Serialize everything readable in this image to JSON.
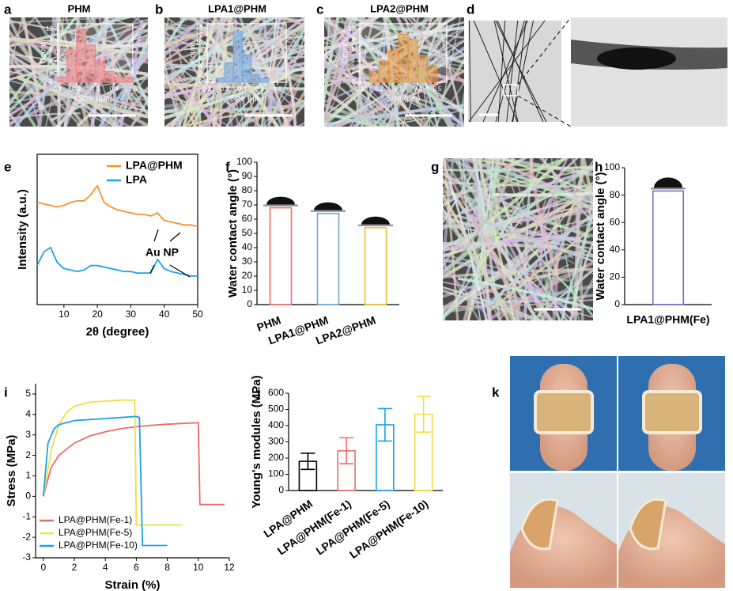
{
  "chart_data": [
    {
      "type": "histogram",
      "panel": "a",
      "title": "PHM",
      "bins": [
        0.1,
        0.15,
        0.2,
        0.25,
        0.3,
        0.35,
        0.4,
        0.45,
        0.5
      ],
      "counts": [
        1,
        6,
        10,
        7,
        4,
        2,
        1,
        1
      ],
      "color": "#f08080",
      "xlim": [
        0.1,
        0.5
      ],
      "xticks": [
        0.1,
        0.2,
        0.3,
        0.4,
        0.5
      ],
      "ylim": [
        0,
        11
      ],
      "yticks": [
        0,
        2,
        4,
        6,
        8,
        10
      ],
      "xlabel": "Size (μm)",
      "ylabel": "Count"
    },
    {
      "type": "histogram",
      "panel": "b",
      "title": "LPA1@PHM",
      "bins": [
        0.25,
        0.3,
        0.35,
        0.4,
        0.45,
        0.5,
        0.55
      ],
      "counts": [
        1,
        5,
        13,
        7,
        2,
        1
      ],
      "color": "#6fa8dc",
      "xlim": [
        0.2,
        0.65
      ],
      "xticks": [
        0.2,
        0.3,
        0.4,
        0.5,
        0.6
      ],
      "ylim": [
        0,
        15
      ],
      "yticks": [
        0,
        2,
        4,
        6,
        8,
        10,
        12,
        14
      ],
      "xlabel": "Size (μm)",
      "ylabel": "Count"
    },
    {
      "type": "histogram",
      "panel": "c",
      "title": "LPA2@PHM",
      "bins": [
        0.15,
        0.2,
        0.25,
        0.3,
        0.35,
        0.4,
        0.45,
        0.5
      ],
      "counts": [
        2,
        4,
        6,
        9,
        8,
        5,
        3
      ],
      "color": "#e69138",
      "xlim": [
        0.1,
        0.55
      ],
      "xticks": [
        0.1,
        0.2,
        0.3,
        0.4,
        0.5
      ],
      "ylim": [
        0,
        11
      ],
      "yticks": [
        0,
        2,
        4,
        6,
        8,
        10
      ],
      "xlabel": "Size (μm)",
      "ylabel": "Count"
    },
    {
      "type": "line",
      "panel": "e",
      "x": [
        2,
        4,
        6,
        8,
        10,
        12,
        14,
        16,
        18,
        20,
        22,
        24,
        26,
        28,
        30,
        32,
        34,
        36,
        38,
        40,
        42,
        44,
        46,
        48,
        50
      ],
      "series": [
        {
          "name": "LPA@PHM",
          "color": "#f7902e",
          "values": [
            6.8,
            6.7,
            6.6,
            6.5,
            6.6,
            6.8,
            6.9,
            6.9,
            7.3,
            7.9,
            6.8,
            6.5,
            6.3,
            6.2,
            6.1,
            6.0,
            6.0,
            5.9,
            6.1,
            5.6,
            5.5,
            5.4,
            5.3,
            5.3,
            5.2
          ]
        },
        {
          "name": "LPA",
          "color": "#1aa3e8",
          "values": [
            2.6,
            3.5,
            3.8,
            2.8,
            2.4,
            2.3,
            2.2,
            2.3,
            2.6,
            2.6,
            2.5,
            2.4,
            2.3,
            2.2,
            2.2,
            2.1,
            2.1,
            2.1,
            3.0,
            2.4,
            2.2,
            2.1,
            2.0,
            1.9,
            1.9
          ]
        }
      ],
      "xlim": [
        2,
        50
      ],
      "xticks": [
        10,
        20,
        30,
        40,
        50
      ],
      "ylim": [
        0,
        10
      ],
      "xlabel": "2θ (degree)",
      "ylabel": "Intensity (a.u.)",
      "annotation": "Au NP"
    },
    {
      "type": "bar",
      "panel": "f",
      "categories": [
        "PHM",
        "LPA1@PHM",
        "LPA2@PHM"
      ],
      "values": [
        68,
        64,
        54
      ],
      "colors": [
        "#f06a6a",
        "#6fa8dc",
        "#f1c232"
      ],
      "ylim": [
        0,
        100
      ],
      "yticks": [
        0,
        10,
        20,
        30,
        40,
        50,
        60,
        70,
        80,
        90,
        100
      ],
      "ylabel": "Water contact angle (°)"
    },
    {
      "type": "bar",
      "panel": "h",
      "categories": [
        "LPA1@PHM(Fe)"
      ],
      "values": [
        83
      ],
      "colors": [
        "#7b68c8"
      ],
      "ylim": [
        0,
        100
      ],
      "yticks": [
        0,
        20,
        40,
        60,
        80,
        100
      ],
      "ylabel": "Water contact angle (°)"
    },
    {
      "type": "line",
      "panel": "i",
      "series": [
        {
          "name": "LPA@PHM(Fe-1)",
          "color": "#f06a6a",
          "x": [
            0,
            0.5,
            1,
            2,
            3,
            4,
            5,
            6,
            7,
            8,
            9,
            10,
            10.1,
            11.7
          ],
          "values": [
            0,
            1.4,
            2.0,
            2.6,
            2.95,
            3.15,
            3.3,
            3.4,
            3.47,
            3.52,
            3.56,
            3.6,
            -0.4,
            -0.4
          ]
        },
        {
          "name": "LPA@PHM(Fe-5)",
          "color": "#f0e040",
          "x": [
            0,
            0.5,
            1,
            1.5,
            2,
            3,
            4,
            5,
            5.9,
            6.0,
            9
          ],
          "values": [
            0,
            2.2,
            3.5,
            4.1,
            4.4,
            4.6,
            4.65,
            4.7,
            4.7,
            -1.4,
            -1.4
          ]
        },
        {
          "name": "LPA@PHM(Fe-10)",
          "color": "#1aa3e8",
          "x": [
            0,
            0.3,
            0.7,
            1,
            2,
            3,
            4,
            5,
            6,
            6.2,
            6.4,
            8
          ],
          "values": [
            0,
            2.6,
            3.3,
            3.5,
            3.7,
            3.75,
            3.8,
            3.85,
            3.9,
            3.85,
            -2.4,
            -2.4
          ]
        }
      ],
      "xlim": [
        -0.5,
        12
      ],
      "xticks": [
        0,
        2,
        4,
        6,
        8,
        10,
        12
      ],
      "ylim": [
        -3,
        5.5
      ],
      "yticks": [
        -3,
        -2,
        -1,
        0,
        1,
        2,
        3,
        4,
        5
      ],
      "xlabel": "Strain (%)",
      "ylabel": "Stress (MPa)"
    },
    {
      "type": "bar",
      "panel": "j",
      "categories": [
        "LPA@PHM",
        "LPA@PHM(Fe-1)",
        "LPA@PHM(Fe-5)",
        "LPA@PHM(Fe-10)"
      ],
      "values": [
        180,
        245,
        405,
        470
      ],
      "errors": [
        50,
        80,
        100,
        110
      ],
      "colors": [
        "#000000",
        "#f06a6a",
        "#1aa3e8",
        "#f1e040"
      ],
      "ylim": [
        0,
        600
      ],
      "yticks": [
        0,
        100,
        200,
        300,
        400,
        500,
        600
      ],
      "ylabel": "Young's modules (MPa)"
    }
  ],
  "image_panels": [
    "d",
    "g",
    "k"
  ]
}
